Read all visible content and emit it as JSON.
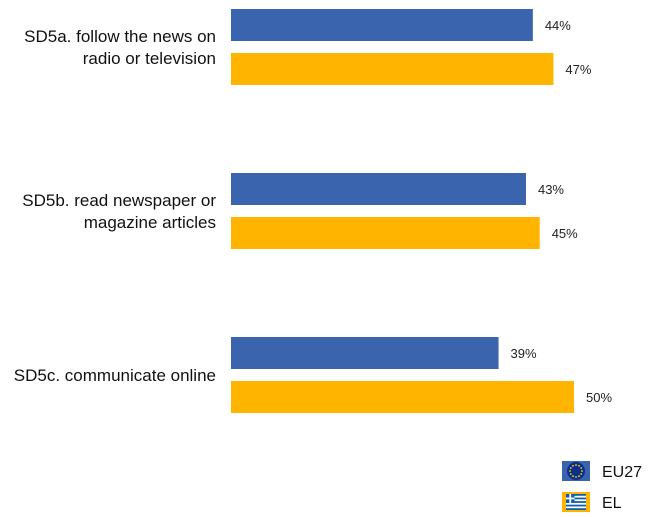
{
  "chart_data": {
    "type": "bar",
    "orientation": "horizontal",
    "categories": [
      [
        "SD5a. follow the news on",
        "radio or television"
      ],
      [
        "SD5b. read newspaper or",
        "magazine articles"
      ],
      [
        "SD5c. communicate online"
      ]
    ],
    "series": [
      {
        "name": "EU27",
        "values": [
          44,
          43,
          39
        ],
        "color": "#3a64ad",
        "icon": "eu-flag-icon"
      },
      {
        "name": "EL",
        "values": [
          47,
          45,
          50
        ],
        "color": "#ffb400",
        "icon": "greece-flag-icon"
      }
    ],
    "value_suffix": "%",
    "xlim": [
      0,
      100
    ],
    "grid": false,
    "legend_position": "bottom-right"
  }
}
